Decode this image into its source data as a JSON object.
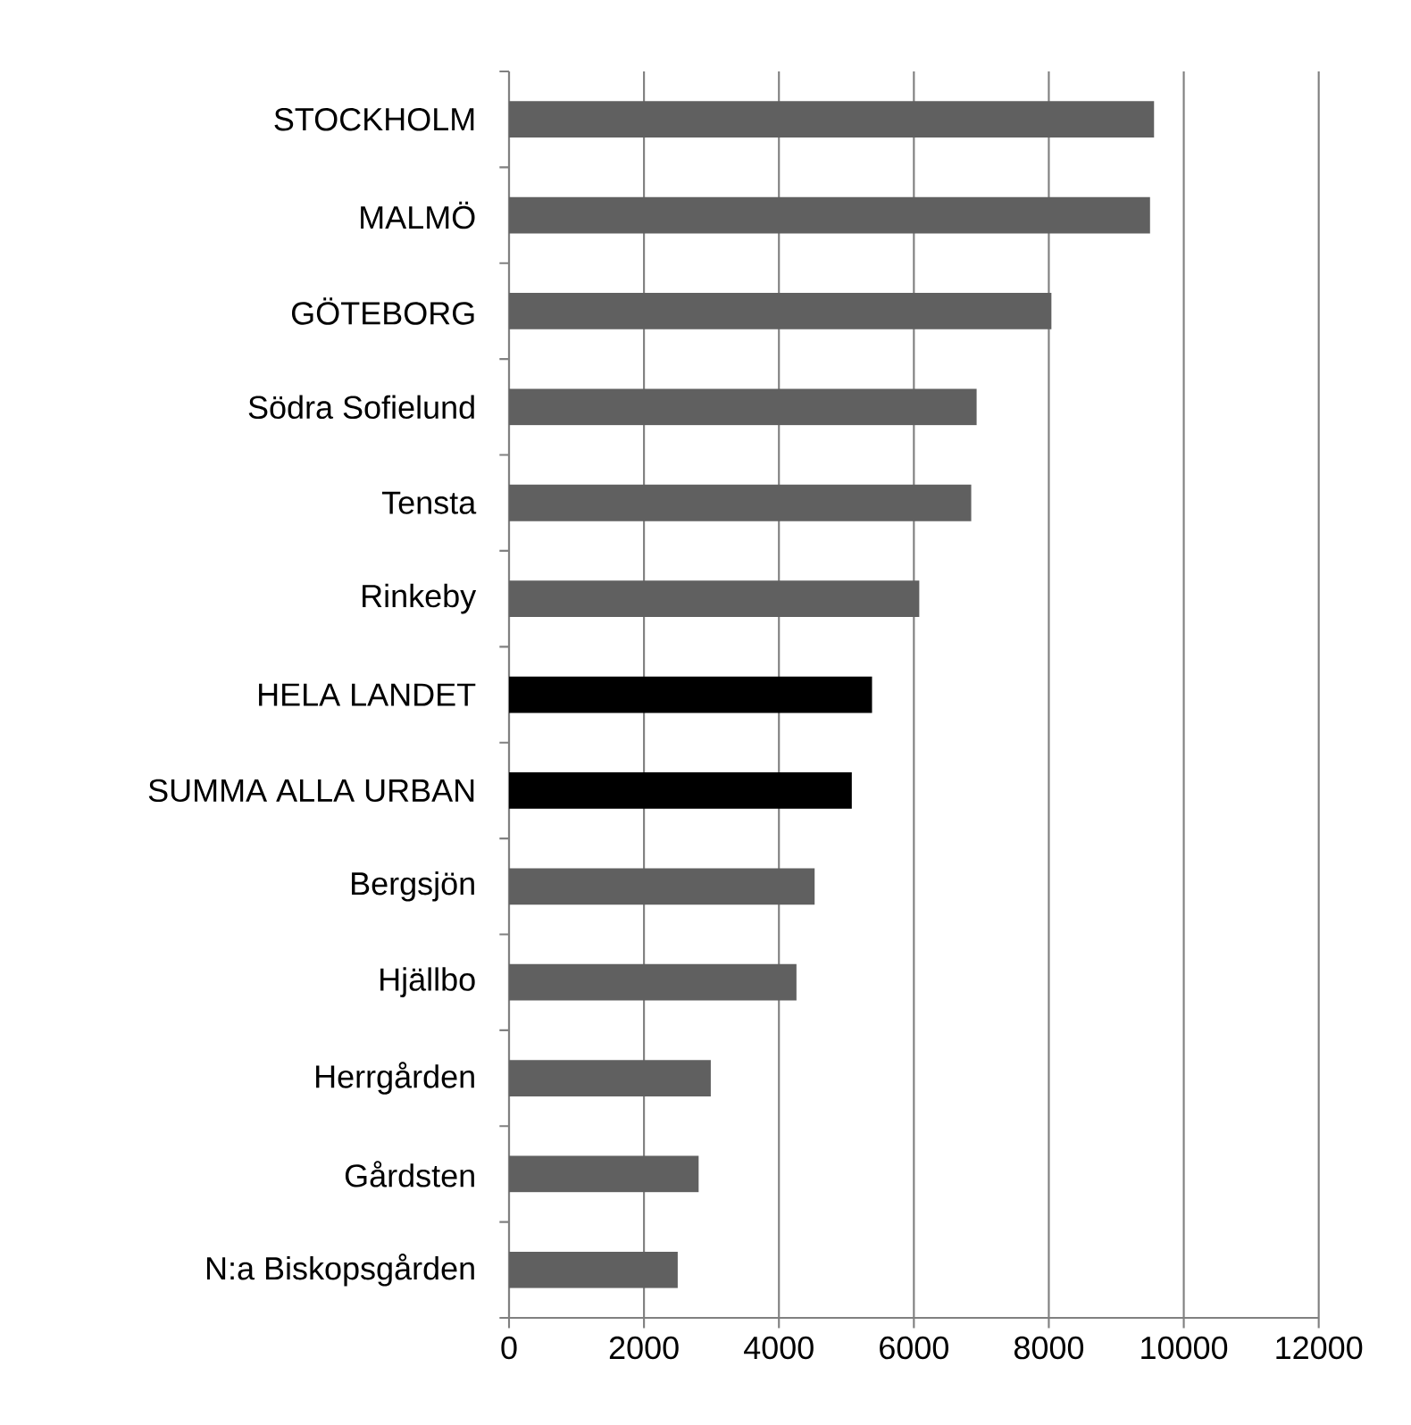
{
  "chart_data": {
    "type": "bar",
    "orientation": "horizontal",
    "categories": [
      "STOCKHOLM",
      "MALMÖ",
      "GÖTEBORG",
      "Södra Sofielund",
      "Tensta",
      "Rinkeby",
      "HELA LANDET",
      "SUMMA ALLA URBAN",
      "Bergsjön",
      "Hjällbo",
      "Herrgården",
      "Gårdsten",
      "N:a Biskopsgården"
    ],
    "values": [
      9560,
      9500,
      8040,
      6930,
      6850,
      6080,
      5380,
      5080,
      4530,
      4260,
      2990,
      2810,
      2500
    ],
    "colors": [
      "#606060",
      "#606060",
      "#606060",
      "#606060",
      "#606060",
      "#606060",
      "#000000",
      "#000000",
      "#606060",
      "#606060",
      "#606060",
      "#606060",
      "#606060"
    ],
    "xlim": [
      0,
      12000
    ],
    "xticks": [
      0,
      2000,
      4000,
      6000,
      8000,
      10000,
      12000
    ],
    "grid": "x"
  }
}
